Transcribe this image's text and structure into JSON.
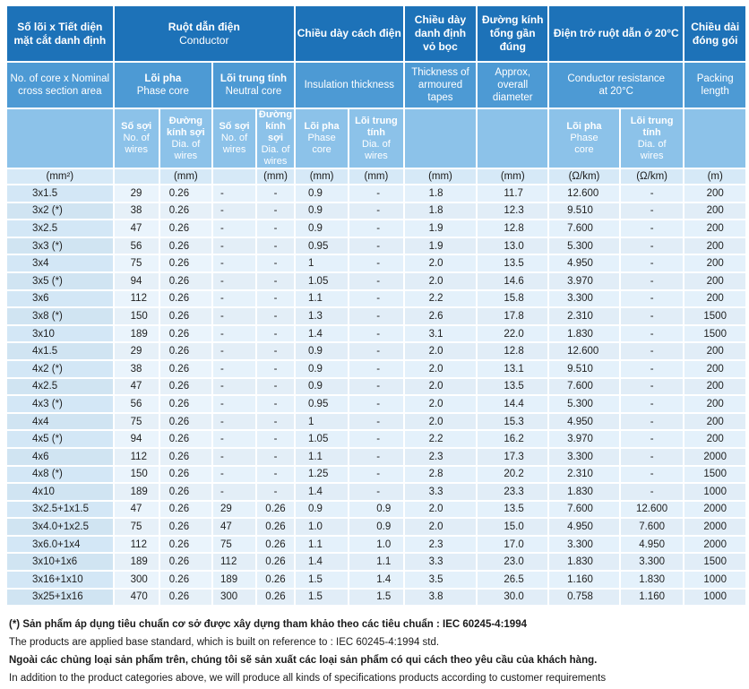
{
  "header": {
    "col_size": {
      "vi": "Số lõi x Tiết diện mặt cắt danh định",
      "en": "No. of core x Nominal cross section area",
      "unit": "(mm²)"
    },
    "conductor": {
      "vi": "Ruột dẫn điện",
      "en": "Conductor"
    },
    "phase_core": {
      "vi": "Lõi pha",
      "en": "Phase core"
    },
    "neutral_core": {
      "vi": "Lõi trung tính",
      "en": "Neutral core"
    },
    "no_wires": {
      "vi": "Số sợi",
      "en1": "No. of",
      "en2": "wires"
    },
    "dia_wires": {
      "vi1": "Đường",
      "vi2": "kính sợi",
      "en1": "Dia. of",
      "en2": "wires",
      "unit": "(mm)"
    },
    "insulation": {
      "vi": "Chiều dày cách điện",
      "en": "Insulation thickness",
      "unit": "(mm)"
    },
    "ins_phase": {
      "vi": "Lõi pha",
      "en1": "Phase",
      "en2": "core"
    },
    "ins_neutral": {
      "vi1": "Lõi trung",
      "vi2": "tính",
      "en1": "Dia. of",
      "en2": "wires"
    },
    "armour": {
      "vi1": "Chiều dày",
      "vi2": "danh định",
      "vi3": "vỏ bọc",
      "en1": "Thickness of",
      "en2": "armoured",
      "en3": "tapes",
      "unit": "(mm)"
    },
    "diameter": {
      "vi1": "Đường kính",
      "vi2": "tổng gần",
      "vi3": "đúng",
      "en1": "Approx,",
      "en2": "overall",
      "en3": "diameter",
      "unit": "(mm)"
    },
    "resistance": {
      "vi": "Điện trở ruột dẫn ở 20°C",
      "en1": "Conductor resistance",
      "en2": "at 20°C",
      "unit": "(Ω/km)"
    },
    "res_phase": {
      "vi": "Lõi pha",
      "en1": "Phase",
      "en2": "core"
    },
    "res_neutral": {
      "vi1": "Lõi trung",
      "vi2": "tính",
      "en1": "Dia. of",
      "en2": "wires"
    },
    "packing": {
      "vi1": "Chiều dài",
      "vi2": "đóng gói",
      "en1": "Packing",
      "en2": "length",
      "unit": "(m)"
    }
  },
  "rows": [
    [
      "3x1.5",
      "29",
      "0.26",
      "-",
      "-",
      "0.9",
      "-",
      "1.8",
      "11.7",
      "12.600",
      "-",
      "200"
    ],
    [
      "3x2 (*)",
      "38",
      "0.26",
      "-",
      "-",
      "0.9",
      "-",
      "1.8",
      "12.3",
      "9.510",
      "-",
      "200"
    ],
    [
      "3x2.5",
      "47",
      "0.26",
      "-",
      "-",
      "0.9",
      "-",
      "1.9",
      "12.8",
      "7.600",
      "-",
      "200"
    ],
    [
      "3x3 (*)",
      "56",
      "0.26",
      "-",
      "-",
      "0.95",
      "-",
      "1.9",
      "13.0",
      "5.300",
      "-",
      "200"
    ],
    [
      "3x4",
      "75",
      "0.26",
      "-",
      "-",
      "1",
      "-",
      "2.0",
      "13.5",
      "4.950",
      "-",
      "200"
    ],
    [
      "3x5 (*)",
      "94",
      "0.26",
      "-",
      "-",
      "1.05",
      "-",
      "2.0",
      "14.6",
      "3.970",
      "-",
      "200"
    ],
    [
      "3x6",
      "112",
      "0.26",
      "-",
      "-",
      "1.1",
      "-",
      "2.2",
      "15.8",
      "3.300",
      "-",
      "200"
    ],
    [
      "3x8 (*)",
      "150",
      "0.26",
      "-",
      "-",
      "1.3",
      "-",
      "2.6",
      "17.8",
      "2.310",
      "-",
      "1500"
    ],
    [
      "3x10",
      "189",
      "0.26",
      "-",
      "-",
      "1.4",
      "-",
      "3.1",
      "22.0",
      "1.830",
      "-",
      "1500"
    ],
    [
      "4x1.5",
      "29",
      "0.26",
      "-",
      "-",
      "0.9",
      "-",
      "2.0",
      "12.8",
      "12.600",
      "-",
      "200"
    ],
    [
      "4x2 (*)",
      "38",
      "0.26",
      "-",
      "-",
      "0.9",
      "-",
      "2.0",
      "13.1",
      "9.510",
      "-",
      "200"
    ],
    [
      "4x2.5",
      "47",
      "0.26",
      "-",
      "-",
      "0.9",
      "-",
      "2.0",
      "13.5",
      "7.600",
      "-",
      "200"
    ],
    [
      "4x3 (*)",
      "56",
      "0.26",
      "-",
      "-",
      "0.95",
      "-",
      "2.0",
      "14.4",
      "5.300",
      "-",
      "200"
    ],
    [
      "4x4",
      "75",
      "0.26",
      "-",
      "-",
      "1",
      "-",
      "2.0",
      "15.3",
      "4.950",
      "-",
      "200"
    ],
    [
      "4x5 (*)",
      "94",
      "0.26",
      "-",
      "-",
      "1.05",
      "-",
      "2.2",
      "16.2",
      "3.970",
      "-",
      "200"
    ],
    [
      "4x6",
      "112",
      "0.26",
      "-",
      "-",
      "1.1",
      "-",
      "2.3",
      "17.3",
      "3.300",
      "-",
      "2000"
    ],
    [
      "4x8 (*)",
      "150",
      "0.26",
      "-",
      "-",
      "1.25",
      "-",
      "2.8",
      "20.2",
      "2.310",
      "-",
      "1500"
    ],
    [
      "4x10",
      "189",
      "0.26",
      "-",
      "-",
      "1.4",
      "-",
      "3.3",
      "23.3",
      "1.830",
      "-",
      "1000"
    ],
    [
      "3x2.5+1x1.5",
      "47",
      "0.26",
      "29",
      "0.26",
      "0.9",
      "0.9",
      "2.0",
      "13.5",
      "7.600",
      "12.600",
      "2000"
    ],
    [
      "3x4.0+1x2.5",
      "75",
      "0.26",
      "47",
      "0.26",
      "1.0",
      "0.9",
      "2.0",
      "15.0",
      "4.950",
      "7.600",
      "2000"
    ],
    [
      "3x6.0+1x4",
      "112",
      "0.26",
      "75",
      "0.26",
      "1.1",
      "1.0",
      "2.3",
      "17.0",
      "3.300",
      "4.950",
      "2000"
    ],
    [
      "3x10+1x6",
      "189",
      "0.26",
      "112",
      "0.26",
      "1.4",
      "1.1",
      "3.3",
      "23.0",
      "1.830",
      "3.300",
      "1500"
    ],
    [
      "3x16+1x10",
      "300",
      "0.26",
      "189",
      "0.26",
      "1.5",
      "1.4",
      "3.5",
      "26.5",
      "1.160",
      "1.830",
      "1000"
    ],
    [
      "3x25+1x16",
      "470",
      "0.26",
      "300",
      "0.26",
      "1.5",
      "1.5",
      "3.8",
      "30.0",
      "0.758",
      "1.160",
      "1000"
    ]
  ],
  "notes": {
    "note1": "(*) Sản phẩm áp dụng tiêu chuẩn cơ sở được xây dựng tham khảo theo các tiêu chuẩn : IEC 60245-4:1994",
    "note2": "The products are applied base standard, which is built on reference to : IEC 60245-4:1994 std.",
    "note3": "Ngoài các chủng loại sản phẩm trên, chúng tôi sẽ sản xuất các loại sản phẩm có qui cách theo yêu cầu của khách hàng.",
    "note4": "In addition to the product categories above, we will produce all kinds of specifications products according to customer requirements"
  }
}
